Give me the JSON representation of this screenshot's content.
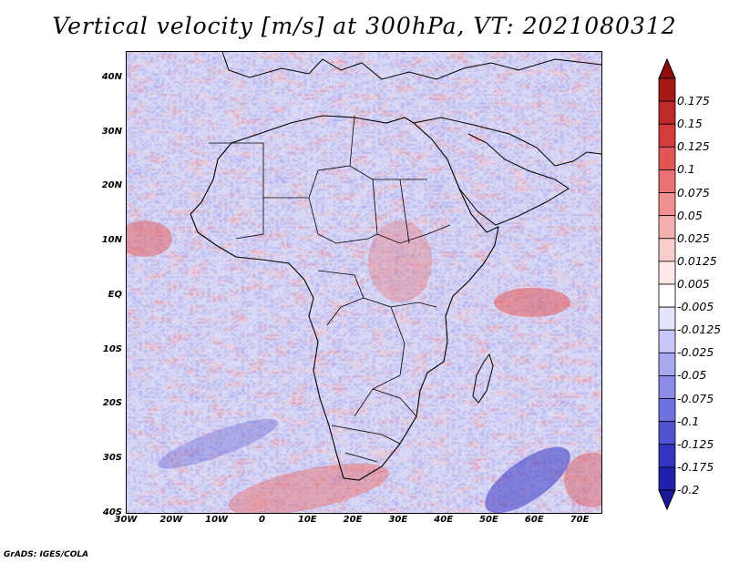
{
  "title": "Vertical velocity [m/s] at 300hPa, VT: 2021080312",
  "map": {
    "variable": "Vertical velocity",
    "units": "m/s",
    "level": "300hPa",
    "valid_time": "2021080312",
    "lon_range": [
      -30,
      75
    ],
    "lat_range": [
      -40,
      45
    ],
    "lat_ticks": [
      {
        "value": 40,
        "label": "40N"
      },
      {
        "value": 30,
        "label": "30N"
      },
      {
        "value": 20,
        "label": "20N"
      },
      {
        "value": 10,
        "label": "10N"
      },
      {
        "value": 0,
        "label": "EQ"
      },
      {
        "value": -10,
        "label": "10S"
      },
      {
        "value": -20,
        "label": "20S"
      },
      {
        "value": -30,
        "label": "30S"
      },
      {
        "value": -40,
        "label": "40S"
      }
    ],
    "lon_ticks": [
      {
        "value": -30,
        "label": "30W"
      },
      {
        "value": -20,
        "label": "20W"
      },
      {
        "value": -10,
        "label": "10W"
      },
      {
        "value": 0,
        "label": "0"
      },
      {
        "value": 10,
        "label": "10E"
      },
      {
        "value": 20,
        "label": "20E"
      },
      {
        "value": 30,
        "label": "30E"
      },
      {
        "value": 40,
        "label": "40E"
      },
      {
        "value": 50,
        "label": "50E"
      },
      {
        "value": 60,
        "label": "60E"
      },
      {
        "value": 70,
        "label": "70E"
      }
    ]
  },
  "colorbar": {
    "levels": [
      {
        "label": "0.175",
        "color": "#a51818"
      },
      {
        "label": "0.15",
        "color": "#be2a2a"
      },
      {
        "label": "0.125",
        "color": "#d23c3c"
      },
      {
        "label": "0.1",
        "color": "#e05555"
      },
      {
        "label": "0.075",
        "color": "#ea7272"
      },
      {
        "label": "0.05",
        "color": "#f09090"
      },
      {
        "label": "0.025",
        "color": "#f5afaf"
      },
      {
        "label": "0.0125",
        "color": "#facdcd"
      },
      {
        "label": "0.005",
        "color": "#fde8e8"
      },
      {
        "label": "-0.005",
        "color": "#ffffff"
      },
      {
        "label": "-0.0125",
        "color": "#e4e4fb"
      },
      {
        "label": "-0.025",
        "color": "#c8c8f6"
      },
      {
        "label": "-0.05",
        "color": "#a8a8f0"
      },
      {
        "label": "-0.075",
        "color": "#8c8ce8"
      },
      {
        "label": "-0.1",
        "color": "#7070de"
      },
      {
        "label": "-0.125",
        "color": "#5252d2"
      },
      {
        "label": "-0.175",
        "color": "#3434c2"
      },
      {
        "label": "-0.2",
        "color": "#2020ac"
      }
    ],
    "top_color": "#8f0f0f",
    "bottom_color": "#18189a"
  },
  "credit": "GrADS: IGES/COLA"
}
